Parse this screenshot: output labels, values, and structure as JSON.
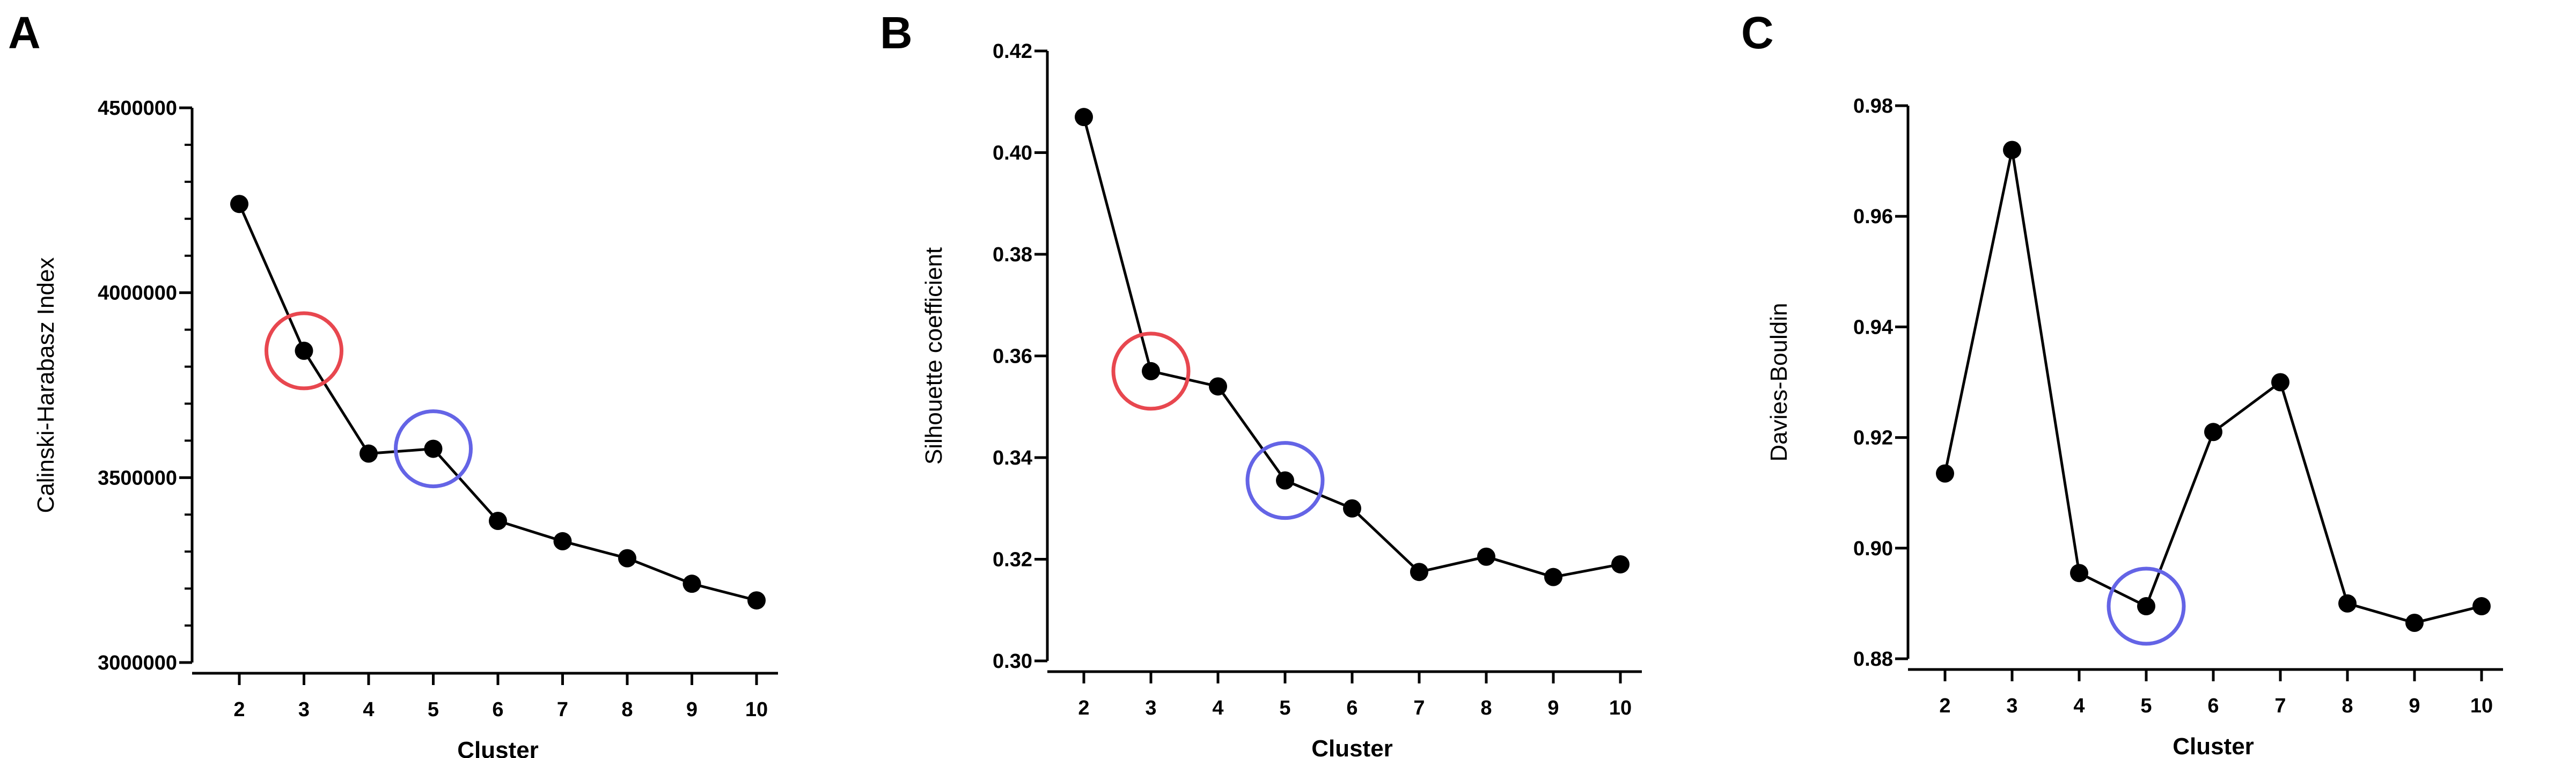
{
  "chart_data": [
    {
      "type": "line",
      "panel_label": "A",
      "xlabel": "Cluster",
      "ylabel": "Calinski-Harabasz Index",
      "x": [
        2,
        3,
        4,
        5,
        6,
        7,
        8,
        9,
        10
      ],
      "x_tick_labels": [
        "2",
        "3",
        "4",
        "5",
        "6",
        "7",
        "8",
        "9",
        "10"
      ],
      "y": [
        4240000,
        3843000,
        3565000,
        3578000,
        3383000,
        3328000,
        3282000,
        3213000,
        3168000
      ],
      "ylim": [
        3000000,
        4500000
      ],
      "y_tick_labels": [
        "3000000",
        "3500000",
        "4000000",
        "4500000"
      ],
      "y_ticks": [
        3000000,
        3500000,
        4000000,
        4500000
      ],
      "y_minor_step": 100000,
      "highlights": [
        {
          "x": 3,
          "color": "#e8474f"
        },
        {
          "x": 5,
          "color": "#6464e6"
        }
      ]
    },
    {
      "type": "line",
      "panel_label": "B",
      "xlabel": "Cluster",
      "ylabel": "Silhouette coefficient",
      "x": [
        2,
        3,
        4,
        5,
        6,
        7,
        8,
        9,
        10
      ],
      "x_tick_labels": [
        "2",
        "3",
        "4",
        "5",
        "6",
        "7",
        "8",
        "9",
        "10"
      ],
      "y": [
        0.407,
        0.357,
        0.354,
        0.3355,
        0.33,
        0.3175,
        0.3205,
        0.3165,
        0.319
      ],
      "ylim": [
        0.3,
        0.42
      ],
      "y_tick_labels": [
        "0.30",
        "0.32",
        "0.34",
        "0.36",
        "0.38",
        "0.40",
        "0.42"
      ],
      "y_ticks": [
        0.3,
        0.32,
        0.34,
        0.36,
        0.38,
        0.4,
        0.42
      ],
      "y_minor_step": 0,
      "highlights": [
        {
          "x": 3,
          "color": "#e8474f"
        },
        {
          "x": 5,
          "color": "#6464e6"
        }
      ]
    },
    {
      "type": "line",
      "panel_label": "C",
      "xlabel": "Cluster",
      "ylabel": "Davies-Bouldin",
      "x": [
        2,
        3,
        4,
        5,
        6,
        7,
        8,
        9,
        10
      ],
      "x_tick_labels": [
        "2",
        "3",
        "4",
        "5",
        "6",
        "7",
        "8",
        "9",
        "10"
      ],
      "y": [
        0.9135,
        0.972,
        0.8955,
        0.8895,
        0.921,
        0.93,
        0.89,
        0.8865,
        0.8895
      ],
      "ylim": [
        0.88,
        0.98
      ],
      "y_tick_labels": [
        "0.88",
        "0.90",
        "0.92",
        "0.94",
        "0.96",
        "0.98"
      ],
      "y_ticks": [
        0.88,
        0.9,
        0.92,
        0.94,
        0.96,
        0.98
      ],
      "y_minor_step": 0,
      "highlights": [
        {
          "x": 5,
          "color": "#6464e6"
        }
      ]
    }
  ]
}
